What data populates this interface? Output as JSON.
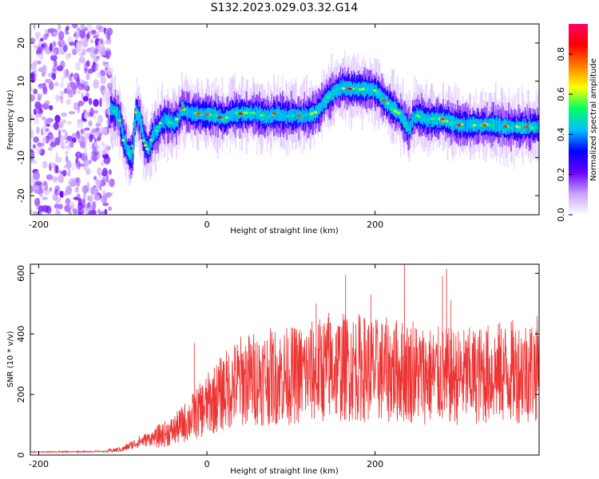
{
  "title": "S132.2023.029.03.32.G14",
  "chart_data": [
    {
      "type": "heatmap",
      "xlabel": "Height of straight line (km)",
      "ylabel": "Frequency (Hz)",
      "xlim": [
        -210,
        395
      ],
      "ylim": [
        -25,
        25
      ],
      "xticks": [
        -200,
        0,
        200
      ],
      "yticks": [
        -20,
        -10,
        0,
        10,
        20
      ],
      "colorbar": {
        "label": "Normalized spectral amplitude",
        "range": [
          0,
          0.95
        ],
        "ticks": [
          0.0,
          0.2,
          0.4,
          0.6,
          0.8
        ],
        "tick_labels": [
          "0.0",
          "0.2",
          "0.4",
          "0.6",
          "0.8"
        ],
        "colors": [
          "#ffffff",
          "#c8a0ff",
          "#6a00ff",
          "#0000ff",
          "#00c0ff",
          "#00ff60",
          "#ffff00",
          "#ff8000",
          "#ff0000",
          "#ff0066"
        ]
      },
      "noise_region_x": [
        -210,
        -113
      ],
      "ridge": {
        "x": [
          -115,
          -105,
          -100,
          -95,
          -90,
          -85,
          -80,
          -75,
          -70,
          -65,
          -60,
          -55,
          -50,
          -40,
          -35,
          -30,
          -25,
          -20,
          -10,
          0,
          10,
          20,
          30,
          40,
          50,
          60,
          70,
          80,
          90,
          100,
          110,
          120,
          130,
          140,
          150,
          160,
          170,
          180,
          190,
          200,
          210,
          220,
          230,
          235,
          240,
          245,
          250,
          260,
          280,
          300,
          320,
          340,
          360,
          380,
          395
        ],
        "y": [
          3,
          1,
          -5,
          -8,
          -10,
          2,
          0,
          -6,
          -8,
          -4,
          -3,
          -1,
          0,
          -1,
          0,
          3,
          2,
          1.5,
          1.5,
          1.2,
          1,
          0,
          1.5,
          1.5,
          1.5,
          1.5,
          0.5,
          1.5,
          1,
          1,
          1,
          1,
          2,
          5,
          7,
          8.5,
          8,
          8,
          8,
          7.5,
          5,
          3,
          1,
          -1,
          -2.5,
          0.5,
          1,
          0,
          0,
          -1.5,
          -1.5,
          -1.5,
          -2,
          -2,
          -2
        ]
      },
      "hotspots_x": [
        -30,
        -10,
        0,
        15,
        40,
        80,
        110,
        170,
        210,
        280,
        300,
        330,
        355,
        380
      ]
    },
    {
      "type": "line",
      "xlabel": "Height of straight line (km)",
      "ylabel": "SNR (10 * v/v)",
      "xlim": [
        -210,
        395
      ],
      "ylim": [
        0,
        630
      ],
      "xticks": [
        -200,
        0,
        200
      ],
      "yticks": [
        0,
        200,
        400,
        600
      ],
      "color": "#ee3333",
      "envelope": {
        "x": [
          -210,
          -120,
          -100,
          -80,
          -60,
          -40,
          -20,
          0,
          20,
          40,
          60,
          80,
          100,
          120,
          140,
          160,
          180,
          200,
          220,
          240,
          260,
          280,
          300,
          320,
          340,
          360,
          380,
          395
        ],
        "y": [
          10,
          12,
          20,
          45,
          60,
          80,
          120,
          165,
          210,
          245,
          255,
          260,
          262,
          270,
          285,
          290,
          290,
          280,
          280,
          275,
          265,
          260,
          258,
          262,
          270,
          275,
          280,
          285
        ]
      },
      "spikes": [
        {
          "x": -15,
          "y": 370
        },
        {
          "x": 20,
          "y": 310
        },
        {
          "x": 130,
          "y": 500
        },
        {
          "x": 145,
          "y": 470
        },
        {
          "x": 165,
          "y": 595
        },
        {
          "x": 195,
          "y": 530
        },
        {
          "x": 235,
          "y": 630
        },
        {
          "x": 245,
          "y": 440
        },
        {
          "x": 280,
          "y": 590
        },
        {
          "x": 285,
          "y": 615
        },
        {
          "x": 290,
          "y": 510
        },
        {
          "x": 380,
          "y": 375
        }
      ]
    }
  ]
}
